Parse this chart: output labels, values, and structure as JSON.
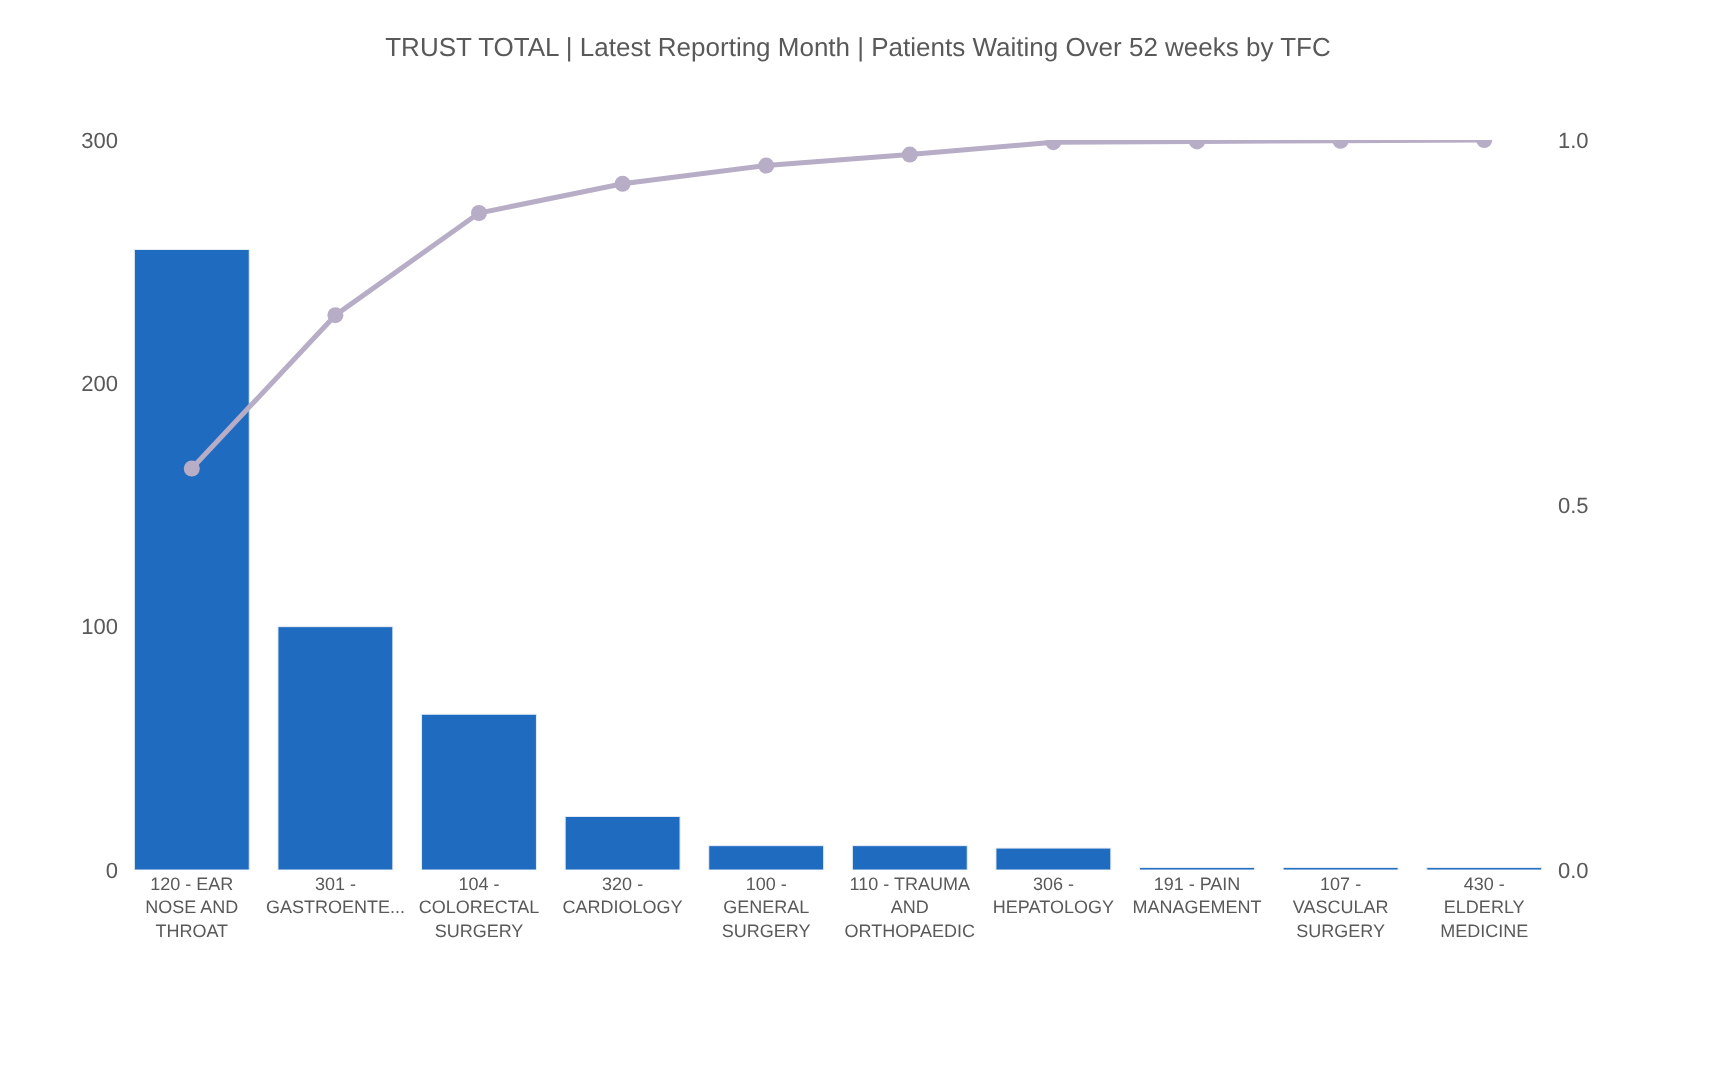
{
  "chart_data": {
    "type": "bar",
    "title": "TRUST TOTAL | Latest Reporting Month | Patients Waiting Over 52 weeks by TFC",
    "categories": [
      "120 - EAR NOSE AND THROAT",
      "301 - GASTROENTE...",
      "104 - COLORECTAL SURGERY",
      "320 - CARDIOLOGY",
      "100 - GENERAL SURGERY",
      "110 - TRAUMA AND ORTHOPAEDIC",
      "306 - HEPATOLOGY",
      "191 - PAIN MANAGEMENT",
      "107 - VASCULAR SURGERY",
      "430 - ELDERLY MEDICINE"
    ],
    "series": [
      {
        "color": "#1f6bbf",
        "values": [
          255,
          100,
          64,
          22,
          10,
          10,
          9,
          1,
          1,
          1
        ]
      },
      {
        "type": "line",
        "axis": "y2",
        "color": "#b7adc7",
        "values": [
          0.55,
          0.76,
          0.9,
          0.94,
          0.965,
          0.98,
          0.997,
          0.998,
          0.999,
          1.0
        ]
      }
    ],
    "ylim": [
      0,
      300
    ],
    "yticks": [
      0,
      100,
      200,
      300
    ],
    "y2lim": [
      0,
      1
    ],
    "y2ticks": [
      {
        "value": 0,
        "label": "0.0"
      },
      {
        "value": 0.5,
        "label": "0.5"
      },
      {
        "value": 1,
        "label": "1.0"
      }
    ],
    "grid": false,
    "legend": false,
    "marker": "circle",
    "line_style": "solid"
  }
}
